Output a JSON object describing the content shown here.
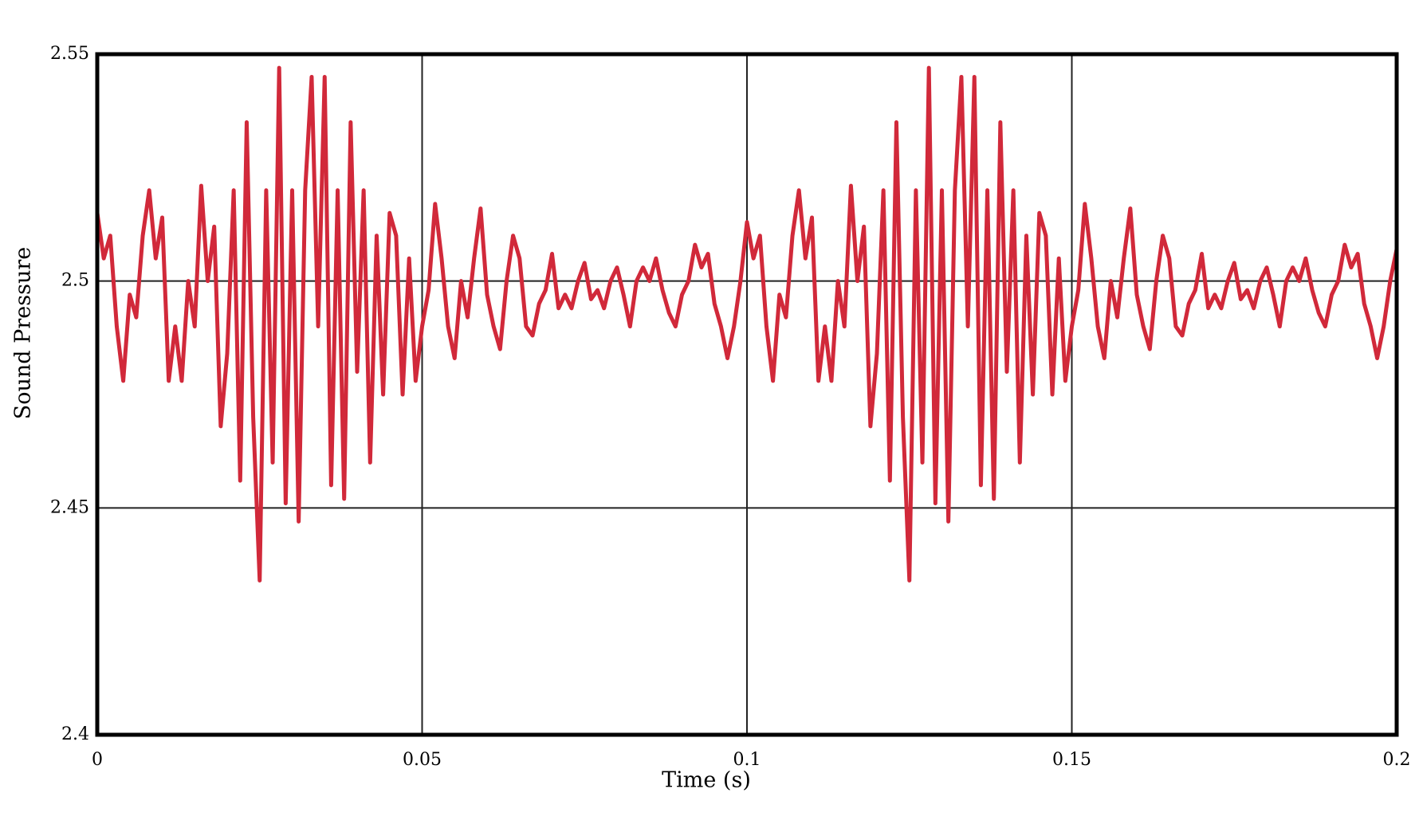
{
  "chart_data": {
    "type": "line",
    "xlabel": "Time (s)",
    "ylabel": "Sound Pressure",
    "xlim": [
      0,
      0.2
    ],
    "ylim": [
      2.4,
      2.55
    ],
    "xticks": [
      0,
      0.05,
      0.1,
      0.15,
      0.2
    ],
    "yticks": [
      2.4,
      2.45,
      2.5,
      2.55
    ],
    "grid": true,
    "x": [
      0,
      0.001,
      0.002,
      0.003,
      0.004,
      0.005,
      0.006,
      0.007,
      0.008,
      0.009,
      0.01,
      0.011,
      0.012,
      0.013,
      0.014,
      0.015,
      0.016,
      0.017,
      0.018,
      0.019,
      0.02,
      0.021,
      0.022,
      0.023,
      0.024,
      0.025,
      0.026,
      0.027,
      0.028,
      0.029,
      0.03,
      0.031,
      0.032,
      0.033,
      0.034,
      0.035,
      0.036,
      0.037,
      0.038,
      0.039,
      0.04,
      0.041,
      0.042,
      0.043,
      0.044,
      0.045,
      0.046,
      0.047,
      0.048,
      0.049,
      0.05,
      0.051,
      0.052,
      0.053,
      0.054,
      0.055,
      0.056,
      0.057,
      0.058,
      0.059,
      0.06,
      0.061,
      0.062,
      0.063,
      0.064,
      0.065,
      0.066,
      0.067,
      0.068,
      0.069,
      0.07,
      0.071,
      0.072,
      0.073,
      0.074,
      0.075,
      0.076,
      0.077,
      0.078,
      0.079,
      0.08,
      0.081,
      0.082,
      0.083,
      0.084,
      0.085,
      0.086,
      0.087,
      0.088,
      0.089,
      0.09,
      0.091,
      0.092,
      0.093,
      0.094,
      0.095,
      0.096,
      0.097,
      0.098,
      0.099,
      0.1,
      0.101,
      0.102,
      0.103,
      0.104,
      0.105,
      0.106,
      0.107,
      0.108,
      0.109,
      0.11,
      0.111,
      0.112,
      0.113,
      0.114,
      0.115,
      0.116,
      0.117,
      0.118,
      0.119,
      0.12,
      0.121,
      0.122,
      0.123,
      0.124,
      0.125,
      0.126,
      0.127,
      0.128,
      0.129,
      0.13,
      0.131,
      0.132,
      0.133,
      0.134,
      0.135,
      0.136,
      0.137,
      0.138,
      0.139,
      0.14,
      0.141,
      0.142,
      0.143,
      0.144,
      0.145,
      0.146,
      0.147,
      0.148,
      0.149,
      0.15,
      0.151,
      0.152,
      0.153,
      0.154,
      0.155,
      0.156,
      0.157,
      0.158,
      0.159,
      0.16,
      0.161,
      0.162,
      0.163,
      0.164,
      0.165,
      0.166,
      0.167,
      0.168,
      0.169,
      0.17,
      0.171,
      0.172,
      0.173,
      0.174,
      0.175,
      0.176,
      0.177,
      0.178,
      0.179,
      0.18,
      0.181,
      0.182,
      0.183,
      0.184,
      0.185,
      0.186,
      0.187,
      0.188,
      0.189,
      0.19,
      0.191,
      0.192,
      0.193,
      0.194,
      0.195,
      0.196,
      0.197,
      0.198,
      0.199,
      0.2
    ],
    "series": [
      {
        "color": "#d1293a",
        "values": [
          2.515,
          2.505,
          2.51,
          2.49,
          2.478,
          2.497,
          2.492,
          2.51,
          2.52,
          2.505,
          2.514,
          2.478,
          2.49,
          2.478,
          2.5,
          2.49,
          2.521,
          2.5,
          2.512,
          2.468,
          2.484,
          2.52,
          2.456,
          2.535,
          2.47,
          2.434,
          2.52,
          2.46,
          2.547,
          2.451,
          2.52,
          2.447,
          2.52,
          2.545,
          2.49,
          2.545,
          2.455,
          2.52,
          2.452,
          2.535,
          2.48,
          2.52,
          2.46,
          2.51,
          2.475,
          2.515,
          2.51,
          2.475,
          2.505,
          2.478,
          2.49,
          2.498,
          2.517,
          2.505,
          2.49,
          2.483,
          2.5,
          2.492,
          2.505,
          2.516,
          2.497,
          2.49,
          2.485,
          2.5,
          2.51,
          2.505,
          2.49,
          2.488,
          2.495,
          2.498,
          2.506,
          2.494,
          2.497,
          2.494,
          2.5,
          2.504,
          2.496,
          2.498,
          2.494,
          2.5,
          2.503,
          2.497,
          2.49,
          2.5,
          2.503,
          2.5,
          2.505,
          2.498,
          2.493,
          2.49,
          2.497,
          2.5,
          2.508,
          2.503,
          2.506,
          2.495,
          2.49,
          2.483,
          2.49,
          2.5,
          2.513,
          2.505,
          2.51,
          2.49,
          2.478,
          2.497,
          2.492,
          2.51,
          2.52,
          2.505,
          2.514,
          2.478,
          2.49,
          2.478,
          2.5,
          2.49,
          2.521,
          2.5,
          2.512,
          2.468,
          2.484,
          2.52,
          2.456,
          2.535,
          2.47,
          2.434,
          2.52,
          2.46,
          2.547,
          2.451,
          2.52,
          2.447,
          2.52,
          2.545,
          2.49,
          2.545,
          2.455,
          2.52,
          2.452,
          2.535,
          2.48,
          2.52,
          2.46,
          2.51,
          2.475,
          2.515,
          2.51,
          2.475,
          2.505,
          2.478,
          2.49,
          2.498,
          2.517,
          2.505,
          2.49,
          2.483,
          2.5,
          2.492,
          2.505,
          2.516,
          2.497,
          2.49,
          2.485,
          2.5,
          2.51,
          2.505,
          2.49,
          2.488,
          2.495,
          2.498,
          2.506,
          2.494,
          2.497,
          2.494,
          2.5,
          2.504,
          2.496,
          2.498,
          2.494,
          2.5,
          2.503,
          2.497,
          2.49,
          2.5,
          2.503,
          2.5,
          2.505,
          2.498,
          2.493,
          2.49,
          2.497,
          2.5,
          2.508,
          2.503,
          2.506,
          2.495,
          2.49,
          2.483,
          2.49,
          2.5,
          2.507
        ]
      }
    ]
  }
}
